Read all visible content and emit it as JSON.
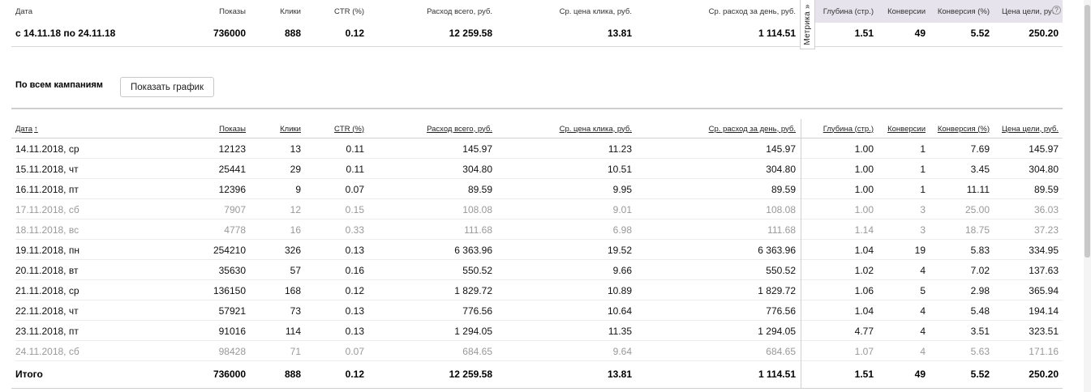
{
  "summary": {
    "headers": [
      "Дата",
      "Показы",
      "Клики",
      "CTR (%)",
      "Расход всего, руб.",
      "Ср. цена клика, руб.",
      "Ср. расход за день, руб.",
      "Глубина (стр.)",
      "Конверсии",
      "Конверсия (%)",
      "Цена цели, руб."
    ],
    "row": [
      "с 14.11.18 по 24.11.18",
      "736000",
      "888",
      "0.12",
      "12 259.58",
      "13.81",
      "1 114.51",
      "1.51",
      "49",
      "5.52",
      "250.20"
    ],
    "metrika_tab": "Метрика »",
    "info_icon": "?"
  },
  "campaigns": {
    "title": "По всем кампаниям",
    "chart_button": "Показать график"
  },
  "detail": {
    "headers": [
      "Дата",
      "Показы",
      "Клики",
      "CTR (%)",
      "Расход всего, руб.",
      "Ср. цена клика, руб.",
      "Ср. расход за день, руб.",
      "Глубина (стр.)",
      "Конверсии",
      "Конверсия (%)",
      "Цена цели, руб."
    ],
    "sort_arrow": "↑",
    "rows": [
      [
        "14.11.2018, ср",
        "12123",
        "13",
        "0.11",
        "145.97",
        "11.23",
        "145.97",
        "1.00",
        "1",
        "7.69",
        "145.97"
      ],
      [
        "15.11.2018, чт",
        "25441",
        "29",
        "0.11",
        "304.80",
        "10.51",
        "304.80",
        "1.00",
        "1",
        "3.45",
        "304.80"
      ],
      [
        "16.11.2018, пт",
        "12396",
        "9",
        "0.07",
        "89.59",
        "9.95",
        "89.59",
        "1.00",
        "1",
        "11.11",
        "89.59"
      ],
      [
        "17.11.2018, сб",
        "7907",
        "12",
        "0.15",
        "108.08",
        "9.01",
        "108.08",
        "1.00",
        "3",
        "25.00",
        "36.03"
      ],
      [
        "18.11.2018, вс",
        "4778",
        "16",
        "0.33",
        "111.68",
        "6.98",
        "111.68",
        "1.14",
        "3",
        "18.75",
        "37.23"
      ],
      [
        "19.11.2018, пн",
        "254210",
        "326",
        "0.13",
        "6 363.96",
        "19.52",
        "6 363.96",
        "1.04",
        "19",
        "5.83",
        "334.95"
      ],
      [
        "20.11.2018, вт",
        "35630",
        "57",
        "0.16",
        "550.52",
        "9.66",
        "550.52",
        "1.02",
        "4",
        "7.02",
        "137.63"
      ],
      [
        "21.11.2018, ср",
        "136150",
        "168",
        "0.12",
        "1 829.72",
        "10.89",
        "1 829.72",
        "1.06",
        "5",
        "2.98",
        "365.94"
      ],
      [
        "22.11.2018, чт",
        "57921",
        "73",
        "0.13",
        "776.56",
        "10.64",
        "776.56",
        "1.04",
        "4",
        "5.48",
        "194.14"
      ],
      [
        "23.11.2018, пт",
        "91016",
        "114",
        "0.13",
        "1 294.05",
        "11.35",
        "1 294.05",
        "4.77",
        "4",
        "3.51",
        "323.51"
      ],
      [
        "24.11.2018, сб",
        "98428",
        "71",
        "0.07",
        "684.65",
        "9.64",
        "684.65",
        "1.07",
        "4",
        "5.63",
        "171.16"
      ]
    ],
    "weekend_rows": [
      3,
      4,
      10
    ],
    "total": [
      "Итого",
      "736000",
      "888",
      "0.12",
      "12 259.58",
      "13.81",
      "1 114.51",
      "1.51",
      "49",
      "5.52",
      "250.20"
    ]
  },
  "colors": {
    "weekend_text": "#999999",
    "metrika_shade": "#e7e3ec",
    "divider": "#d8d8d8"
  }
}
